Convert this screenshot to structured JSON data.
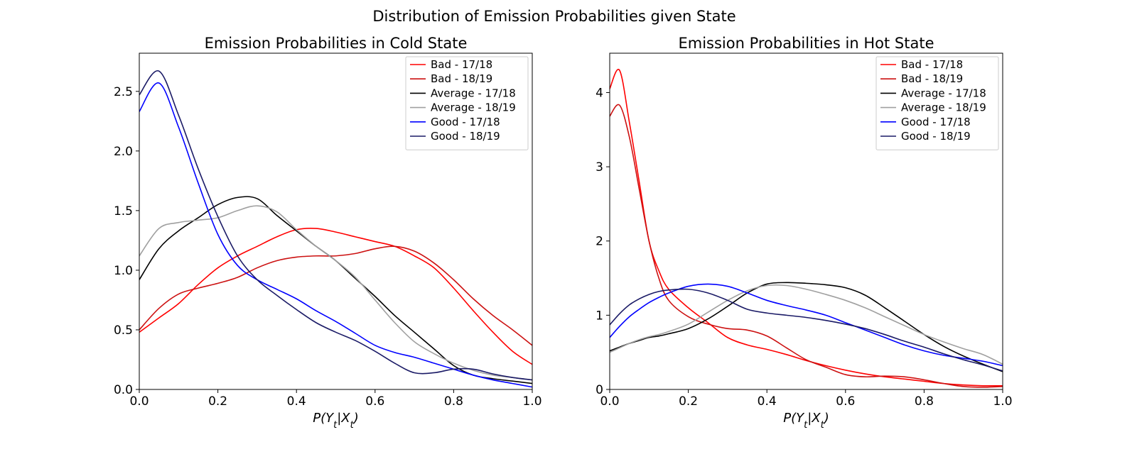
{
  "figure_title": "Distribution of Emission Probabilities given State",
  "chart_data": [
    {
      "type": "line",
      "title": "Emission Probabilities in Cold State",
      "xlabel": "P(Yt|Xt)",
      "ylabel": "",
      "xlim": [
        0.0,
        1.0
      ],
      "ylim": [
        0.0,
        2.82
      ],
      "xticks": [
        "0.0",
        "0.2",
        "0.4",
        "0.6",
        "0.8",
        "1.0"
      ],
      "yticks": [
        "0.0",
        "0.5",
        "1.0",
        "1.5",
        "2.0",
        "2.5"
      ],
      "legend_position": "top-right",
      "x": [
        0.0,
        0.05,
        0.1,
        0.15,
        0.2,
        0.25,
        0.3,
        0.35,
        0.4,
        0.45,
        0.5,
        0.55,
        0.6,
        0.65,
        0.7,
        0.75,
        0.8,
        0.85,
        0.9,
        0.95,
        1.0
      ],
      "series": [
        {
          "name": "Bad - 17/18",
          "color": "#ff0000",
          "values": [
            0.48,
            0.6,
            0.72,
            0.88,
            1.02,
            1.12,
            1.2,
            1.28,
            1.34,
            1.35,
            1.32,
            1.28,
            1.24,
            1.2,
            1.12,
            1.02,
            0.85,
            0.66,
            0.48,
            0.32,
            0.21
          ]
        },
        {
          "name": "Bad - 18/19",
          "color": "#cc1111",
          "values": [
            0.5,
            0.68,
            0.8,
            0.85,
            0.89,
            0.94,
            1.02,
            1.08,
            1.11,
            1.12,
            1.12,
            1.14,
            1.18,
            1.2,
            1.16,
            1.06,
            0.92,
            0.76,
            0.62,
            0.5,
            0.37
          ]
        },
        {
          "name": "Average - 17/18",
          "color": "#000000",
          "values": [
            0.92,
            1.18,
            1.33,
            1.44,
            1.55,
            1.61,
            1.6,
            1.46,
            1.33,
            1.2,
            1.08,
            0.93,
            0.78,
            0.62,
            0.48,
            0.34,
            0.2,
            0.12,
            0.09,
            0.07,
            0.05
          ]
        },
        {
          "name": "Average - 18/19",
          "color": "#a0a0a0",
          "values": [
            1.12,
            1.35,
            1.4,
            1.42,
            1.44,
            1.5,
            1.54,
            1.49,
            1.34,
            1.2,
            1.08,
            0.94,
            0.75,
            0.56,
            0.4,
            0.3,
            0.22,
            0.16,
            0.12,
            0.1,
            0.08
          ]
        },
        {
          "name": "Good - 17/18",
          "color": "#0000ff",
          "values": [
            2.33,
            2.57,
            2.2,
            1.73,
            1.3,
            1.04,
            0.92,
            0.84,
            0.76,
            0.66,
            0.57,
            0.47,
            0.37,
            0.31,
            0.27,
            0.22,
            0.17,
            0.12,
            0.08,
            0.05,
            0.02
          ]
        },
        {
          "name": "Good - 18/19",
          "color": "#1a1a66",
          "values": [
            2.47,
            2.67,
            2.3,
            1.85,
            1.45,
            1.12,
            0.92,
            0.79,
            0.67,
            0.56,
            0.48,
            0.41,
            0.32,
            0.22,
            0.14,
            0.14,
            0.17,
            0.17,
            0.13,
            0.1,
            0.08
          ]
        }
      ]
    },
    {
      "type": "line",
      "title": "Emission Probabilities in Hot State",
      "xlabel": "P(Yt|Xt)",
      "ylabel": "",
      "xlim": [
        0.0,
        1.0
      ],
      "ylim": [
        0.0,
        4.53
      ],
      "xticks": [
        "0.0",
        "0.2",
        "0.4",
        "0.6",
        "0.8",
        "1.0"
      ],
      "yticks": [
        "0",
        "1",
        "2",
        "3",
        "4"
      ],
      "legend_position": "top-right",
      "x": [
        0.0,
        0.025,
        0.05,
        0.075,
        0.1,
        0.125,
        0.15,
        0.2,
        0.25,
        0.3,
        0.35,
        0.4,
        0.45,
        0.5,
        0.55,
        0.6,
        0.65,
        0.7,
        0.75,
        0.8,
        0.85,
        0.9,
        0.95,
        1.0
      ],
      "series": [
        {
          "name": "Bad - 17/18",
          "color": "#ff0000",
          "values": [
            4.05,
            4.3,
            3.6,
            2.8,
            2.0,
            1.6,
            1.35,
            1.1,
            0.9,
            0.7,
            0.6,
            0.54,
            0.47,
            0.39,
            0.32,
            0.26,
            0.21,
            0.17,
            0.14,
            0.11,
            0.08,
            0.06,
            0.05,
            0.05
          ]
        },
        {
          "name": "Bad - 18/19",
          "color": "#cc1111",
          "values": [
            3.68,
            3.83,
            3.4,
            2.7,
            2.0,
            1.5,
            1.2,
            0.98,
            0.88,
            0.82,
            0.8,
            0.72,
            0.56,
            0.4,
            0.3,
            0.2,
            0.17,
            0.18,
            0.17,
            0.13,
            0.08,
            0.04,
            0.03,
            0.04
          ]
        },
        {
          "name": "Average - 17/18",
          "color": "#000000",
          "values": [
            0.52,
            0.57,
            0.62,
            0.66,
            0.7,
            0.72,
            0.75,
            0.82,
            0.95,
            1.12,
            1.3,
            1.42,
            1.44,
            1.43,
            1.41,
            1.37,
            1.27,
            1.1,
            0.92,
            0.74,
            0.58,
            0.45,
            0.34,
            0.24
          ]
        },
        {
          "name": "Average - 18/19",
          "color": "#a0a0a0",
          "values": [
            0.5,
            0.56,
            0.62,
            0.67,
            0.71,
            0.74,
            0.78,
            0.88,
            1.04,
            1.2,
            1.33,
            1.4,
            1.4,
            1.35,
            1.28,
            1.2,
            1.1,
            0.98,
            0.86,
            0.74,
            0.64,
            0.55,
            0.47,
            0.34
          ]
        },
        {
          "name": "Good - 17/18",
          "color": "#0000ff",
          "values": [
            0.7,
            0.85,
            0.98,
            1.08,
            1.17,
            1.24,
            1.3,
            1.39,
            1.42,
            1.39,
            1.3,
            1.2,
            1.13,
            1.07,
            1.0,
            0.9,
            0.8,
            0.7,
            0.6,
            0.52,
            0.46,
            0.42,
            0.38,
            0.32
          ]
        },
        {
          "name": "Good - 18/19",
          "color": "#1a1a66",
          "values": [
            0.87,
            1.02,
            1.14,
            1.22,
            1.28,
            1.32,
            1.34,
            1.35,
            1.3,
            1.2,
            1.08,
            1.03,
            1.0,
            0.97,
            0.93,
            0.88,
            0.82,
            0.74,
            0.65,
            0.57,
            0.48,
            0.4,
            0.33,
            0.25
          ]
        }
      ]
    }
  ]
}
